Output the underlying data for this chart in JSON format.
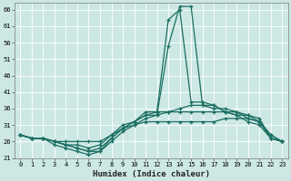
{
  "xlabel": "Humidex (Indice chaleur)",
  "xlim": [
    -0.5,
    23.5
  ],
  "ylim": [
    21,
    68
  ],
  "yticks": [
    21,
    26,
    31,
    36,
    41,
    46,
    51,
    56,
    61,
    66
  ],
  "xticks": [
    0,
    1,
    2,
    3,
    4,
    5,
    6,
    7,
    8,
    9,
    10,
    11,
    12,
    13,
    14,
    15,
    16,
    17,
    18,
    19,
    20,
    21,
    22,
    23
  ],
  "bg_color": "#cde8e4",
  "line_color": "#1a6e62",
  "grid_color": "#b0d8d2",
  "lines": [
    [
      28,
      27,
      27,
      26,
      26,
      26,
      26,
      26,
      28,
      30,
      31,
      32,
      32,
      32,
      32,
      32,
      32,
      32,
      33,
      33,
      33,
      32,
      27,
      26
    ],
    [
      28,
      27,
      27,
      26,
      25,
      24,
      23,
      24,
      27,
      30,
      32,
      34,
      34,
      35,
      35,
      35,
      35,
      35,
      35,
      34,
      32,
      31,
      27,
      26
    ],
    [
      28,
      27,
      27,
      26,
      25,
      25,
      24,
      25,
      28,
      31,
      32,
      34,
      35,
      35,
      36,
      37,
      37,
      37,
      35,
      34,
      34,
      33,
      27,
      26
    ],
    [
      28,
      27,
      27,
      25,
      24,
      23,
      22,
      23,
      27,
      30,
      32,
      35,
      35,
      63,
      66,
      38,
      38,
      37,
      35,
      35,
      34,
      32,
      28,
      26
    ],
    [
      28,
      27,
      27,
      26,
      25,
      24,
      23,
      23,
      26,
      29,
      31,
      33,
      34,
      55,
      67,
      67,
      37,
      36,
      36,
      35,
      33,
      32,
      28,
      26
    ]
  ]
}
